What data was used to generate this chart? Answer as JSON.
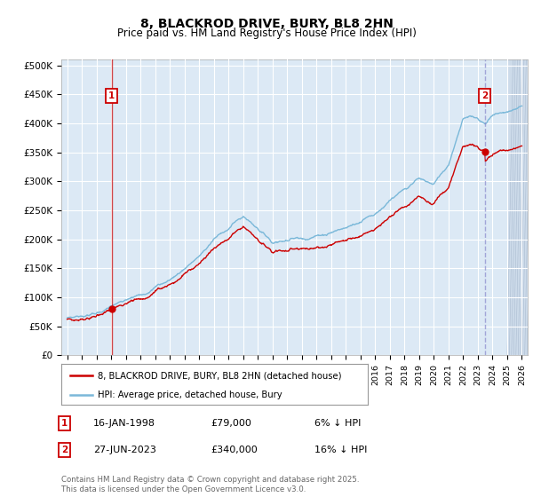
{
  "title": "8, BLACKROD DRIVE, BURY, BL8 2HN",
  "subtitle": "Price paid vs. HM Land Registry's House Price Index (HPI)",
  "legend_line1": "8, BLACKROD DRIVE, BURY, BL8 2HN (detached house)",
  "legend_line2": "HPI: Average price, detached house, Bury",
  "annotation1": {
    "label": "1",
    "date": "16-JAN-1998",
    "price": 79000,
    "note": "6% ↓ HPI"
  },
  "annotation2": {
    "label": "2",
    "date": "27-JUN-2023",
    "price": 340000,
    "note": "16% ↓ HPI"
  },
  "footer": "Contains HM Land Registry data © Crown copyright and database right 2025.\nThis data is licensed under the Open Government Licence v3.0.",
  "ylim": [
    0,
    510000
  ],
  "yticks": [
    0,
    50000,
    100000,
    150000,
    200000,
    250000,
    300000,
    350000,
    400000,
    450000,
    500000
  ],
  "ytick_labels": [
    "£0",
    "£50K",
    "£100K",
    "£150K",
    "£200K",
    "£250K",
    "£300K",
    "£350K",
    "£400K",
    "£450K",
    "£500K"
  ],
  "hpi_color": "#7ab8d9",
  "price_color": "#cc0000",
  "bg_color": "#dce9f5",
  "grid_color": "#ffffff",
  "sale1_year": 1998.04,
  "sale1_price": 79000,
  "sale2_year": 2023.49,
  "sale2_price": 340000,
  "sale1_linestyle": "-",
  "sale2_linestyle": "--",
  "hatch_start": 2025.0,
  "xlim_left": 1994.6,
  "xlim_right": 2026.4
}
